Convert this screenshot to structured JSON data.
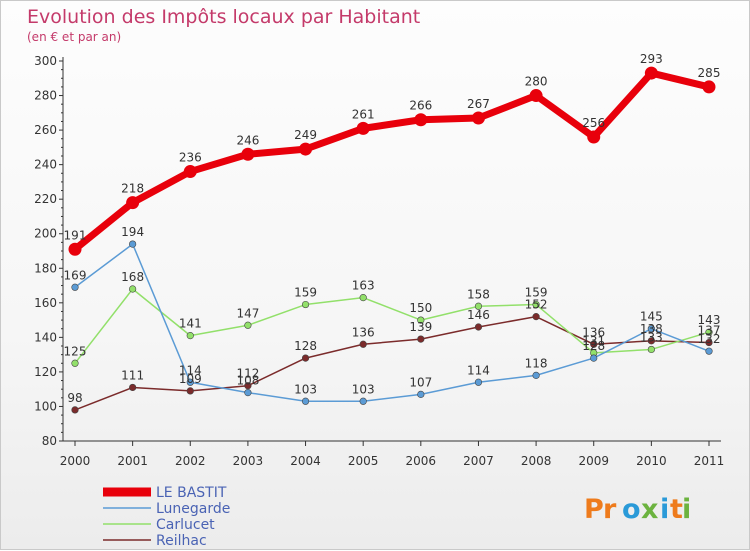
{
  "chart_data": {
    "type": "line",
    "title": "Evolution des Impôts locaux par Habitant",
    "subtitle": "(en € et par an)",
    "x": [
      "2000",
      "2001",
      "2002",
      "2003",
      "2004",
      "2005",
      "2006",
      "2007",
      "2008",
      "2009",
      "2010",
      "2011"
    ],
    "ylim": [
      80,
      300
    ],
    "yticks": [
      80,
      100,
      120,
      140,
      160,
      180,
      200,
      220,
      240,
      260,
      280,
      300
    ],
    "grid": false,
    "legend_position": "bottom-left",
    "series": [
      {
        "name": "LE BASTIT",
        "color": "#e8000b",
        "values": [
          191,
          218,
          236,
          246,
          249,
          261,
          266,
          267,
          280,
          256,
          293,
          285
        ],
        "labels": [
          "191",
          "218",
          "236",
          "246",
          "249",
          "261",
          "266",
          "267",
          "280",
          "256",
          "293",
          "285"
        ]
      },
      {
        "name": "Lunegarde",
        "color": "#5b9bd5",
        "values": [
          169,
          194,
          114,
          108,
          103,
          103,
          107,
          114,
          118,
          128,
          145,
          132
        ],
        "labels": [
          "169",
          "194",
          "114",
          "108",
          "103",
          "103",
          "107",
          "114",
          "118",
          "128",
          "145",
          "132"
        ]
      },
      {
        "name": "Carlucet",
        "color": "#92e06a",
        "values": [
          125,
          168,
          141,
          147,
          159,
          163,
          150,
          158,
          159,
          131,
          133,
          143
        ],
        "labels": [
          "125",
          "168",
          "141",
          "147",
          "159",
          "163",
          "150",
          "158",
          "159",
          "131",
          "133",
          "143"
        ]
      },
      {
        "name": "Reilhac",
        "color": "#7b2b2b",
        "values": [
          98,
          111,
          109,
          112,
          128,
          136,
          139,
          146,
          152,
          136,
          138,
          137
        ],
        "labels": [
          "98",
          "111",
          "109",
          "112",
          "128",
          "136",
          "139",
          "146",
          "152",
          "136",
          "138",
          "137"
        ]
      }
    ]
  },
  "logo": {
    "text": "Proxiti",
    "colors": [
      "#ee7b1c",
      "#ee7b1c",
      "#2a9ad8",
      "#6cb33f",
      "#2a9ad8",
      "#ee7b1c",
      "#6cb33f"
    ]
  }
}
